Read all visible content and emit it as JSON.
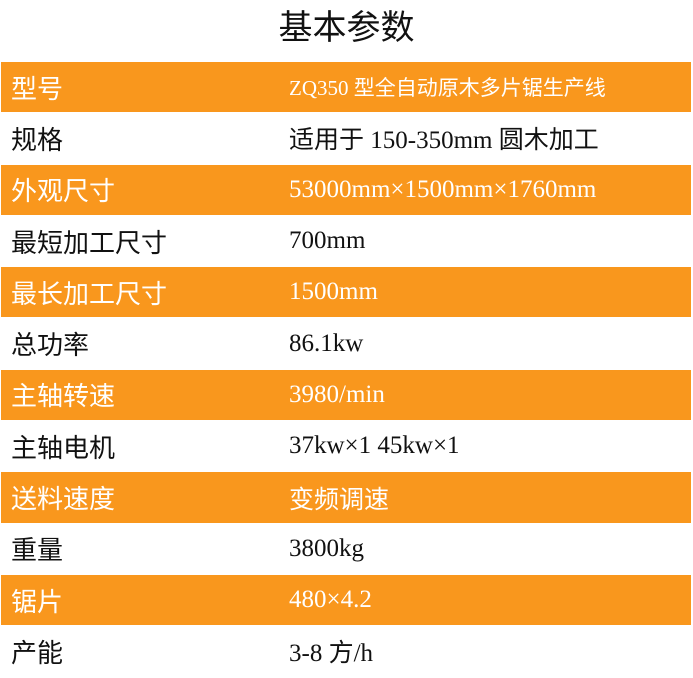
{
  "title": "基本参数",
  "table": {
    "rows": [
      [
        "型号",
        "ZQ350 型全自动原木多片锯生产线"
      ],
      [
        "规格",
        "适用于 150-350mm 圆木加工"
      ],
      [
        "外观尺寸",
        "53000mm×1500mm×1760mm"
      ],
      [
        "最短加工尺寸",
        "700mm"
      ],
      [
        "最长加工尺寸",
        "1500mm"
      ],
      [
        "总功率",
        "86.1kw"
      ],
      [
        "主轴转速",
        "3980/min"
      ],
      [
        "主轴电机",
        "37kw×1 45kw×1"
      ],
      [
        "送料速度",
        "变频调速"
      ],
      [
        "重量",
        "3800kg"
      ],
      [
        "锯片",
        "480×4.2"
      ],
      [
        "产能",
        "3-8 方/h"
      ]
    ]
  }
}
